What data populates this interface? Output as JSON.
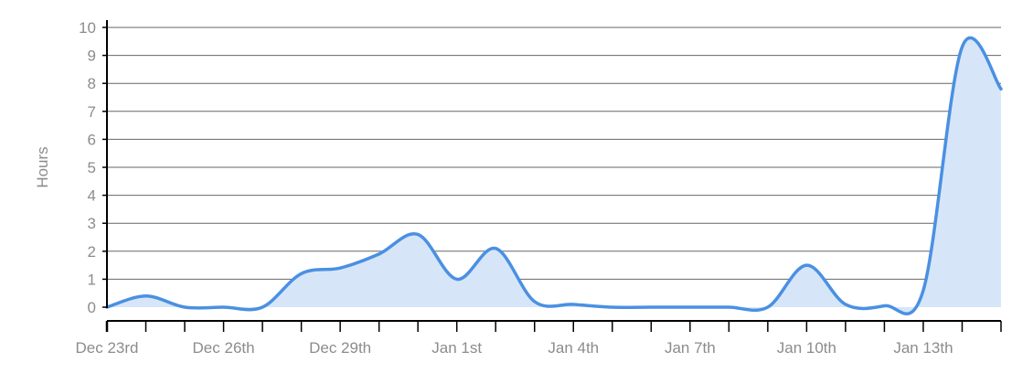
{
  "chart_data": {
    "type": "area",
    "ylabel": "Hours",
    "xlabel": "",
    "ylim": [
      0,
      10
    ],
    "y_ticks": [
      "0",
      "1",
      "2",
      "3",
      "4",
      "5",
      "6",
      "7",
      "8",
      "9",
      "10"
    ],
    "x_tick_labels": [
      {
        "date": "2023-12-23",
        "label": "Dec 23rd"
      },
      {
        "date": "2023-12-26",
        "label": "Dec 26th"
      },
      {
        "date": "2023-12-29",
        "label": "Dec 29th"
      },
      {
        "date": "2024-01-01",
        "label": "Jan 1st"
      },
      {
        "date": "2024-01-04",
        "label": "Jan 4th"
      },
      {
        "date": "2024-01-07",
        "label": "Jan 7th"
      },
      {
        "date": "2024-01-10",
        "label": "Jan 10th"
      },
      {
        "date": "2024-01-13",
        "label": "Jan 13th"
      }
    ],
    "xlim": [
      "2023-12-23",
      "2024-01-15"
    ],
    "grid": true,
    "colors": {
      "line": "#4a90e2",
      "fill": "#d6e6f8",
      "grid": "#666666",
      "axis": "#000000"
    },
    "series": [
      {
        "x": [
          "2023-12-23",
          "2023-12-24",
          "2023-12-25",
          "2023-12-26",
          "2023-12-27",
          "2023-12-28",
          "2023-12-29",
          "2023-12-30",
          "2023-12-31",
          "2024-01-01",
          "2024-01-02",
          "2024-01-03",
          "2024-01-04",
          "2024-01-05",
          "2024-01-06",
          "2024-01-07",
          "2024-01-08",
          "2024-01-09",
          "2024-01-10",
          "2024-01-11",
          "2024-01-12",
          "2024-01-13",
          "2024-01-14",
          "2024-01-15"
        ],
        "y": [
          0.0,
          0.4,
          0.0,
          0.0,
          0.0,
          1.2,
          1.4,
          1.9,
          2.6,
          1.0,
          2.1,
          0.2,
          0.1,
          0.0,
          0.0,
          0.0,
          0.0,
          0.0,
          1.5,
          0.1,
          0.05,
          0.6,
          9.3,
          7.8
        ]
      }
    ]
  }
}
